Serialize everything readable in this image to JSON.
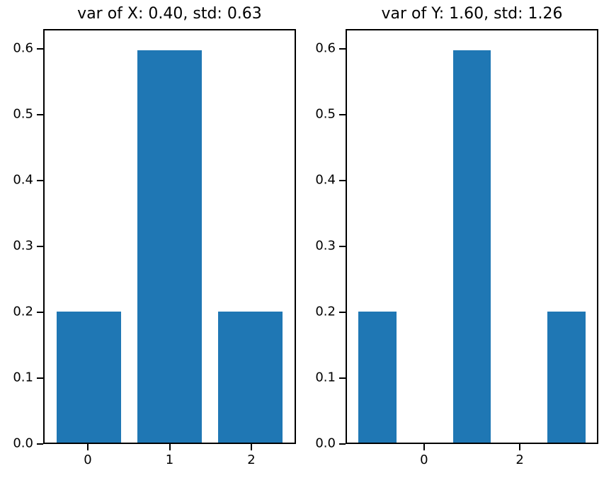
{
  "figure": {
    "background": "#ffffff",
    "text_color": "#000000",
    "axis_color": "#000000"
  },
  "chart_data": [
    {
      "type": "bar",
      "title": "var of X: 0.40, std: 0.63",
      "x": [
        0,
        1,
        2
      ],
      "values": [
        0.2,
        0.6,
        0.2
      ],
      "bar_width": 0.8,
      "bar_color": "#1f77b4",
      "xlabel": "",
      "ylabel": "",
      "xlim": [
        -0.545,
        2.545
      ],
      "ylim": [
        0,
        0.63
      ],
      "xticks": [
        0,
        1,
        2
      ],
      "xtick_labels": [
        "0",
        "1",
        "2"
      ],
      "yticks": [
        0.0,
        0.1,
        0.2,
        0.3,
        0.4,
        0.5,
        0.6
      ],
      "ytick_labels": [
        "0.0",
        "0.1",
        "0.2",
        "0.3",
        "0.4",
        "0.5",
        "0.6"
      ],
      "grid": false,
      "legend": null
    },
    {
      "type": "bar",
      "title": "var of Y: 1.60, std: 1.26",
      "x": [
        -1,
        1,
        3
      ],
      "values": [
        0.2,
        0.6,
        0.2
      ],
      "bar_width": 0.8,
      "bar_color": "#1f77b4",
      "xlabel": "",
      "ylabel": "",
      "xlim": [
        -1.64,
        3.64
      ],
      "ylim": [
        0,
        0.63
      ],
      "xticks": [
        0,
        2
      ],
      "xtick_labels": [
        "0",
        "2"
      ],
      "yticks": [
        0.0,
        0.1,
        0.2,
        0.3,
        0.4,
        0.5,
        0.6
      ],
      "ytick_labels": [
        "0.0",
        "0.1",
        "0.2",
        "0.3",
        "0.4",
        "0.5",
        "0.6"
      ],
      "grid": false,
      "legend": null
    }
  ]
}
